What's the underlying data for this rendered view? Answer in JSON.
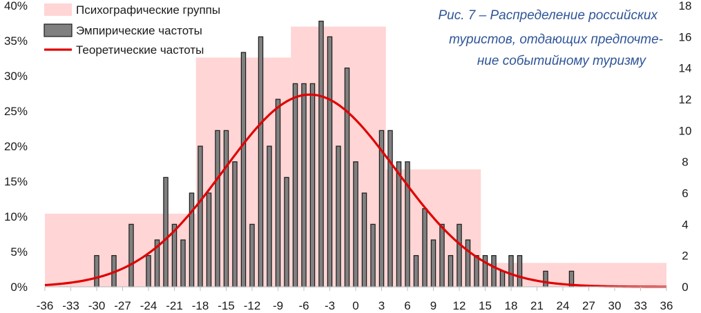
{
  "chart_data": {
    "type": "bar",
    "caption": [
      "Рис. 7 – Распределение российских",
      "туристов, отдающих предпочте-",
      "ние событийному туризму"
    ],
    "legend": {
      "placement": "top-left",
      "entries": [
        {
          "key": "groups",
          "label": "Психографические группы"
        },
        {
          "key": "empirical",
          "label": "Эмпирические частоты"
        },
        {
          "key": "theoretical",
          "label": "Теоретические частоты"
        }
      ]
    },
    "x_ticks": [
      "-36",
      "-33",
      "-30",
      "-27",
      "-24",
      "-21",
      "-18",
      "-15",
      "-12",
      "-9",
      "-6",
      "-3",
      "0",
      "3",
      "6",
      "9",
      "12",
      "15",
      "18",
      "21",
      "24",
      "27",
      "30",
      "33",
      "36"
    ],
    "y_left_ticks": [
      "0%",
      "5%",
      "10%",
      "15%",
      "20%",
      "25%",
      "30%",
      "35%",
      "40%"
    ],
    "y_right_ticks": [
      "0",
      "2",
      "4",
      "6",
      "8",
      "10",
      "12",
      "14",
      "16",
      "18"
    ],
    "xlim": [
      -36,
      36
    ],
    "ylim_left_percent": [
      0,
      40
    ],
    "ylim_right": [
      0,
      18
    ],
    "grid": "none",
    "colors": {
      "groups": "#ffd5d5",
      "empirical": "#808080",
      "bar_edge": "#1a1a1a",
      "theoretical": "#e00000",
      "caption": "#2f5597",
      "axis": "#bfbfbf",
      "text": "#1a1a1a"
    },
    "psychographic_groups": [
      {
        "x_from": -36,
        "x_to": -18.5,
        "percent": 10.4
      },
      {
        "x_from": -18.5,
        "x_to": -7.5,
        "percent": 32.6
      },
      {
        "x_from": -7.5,
        "x_to": 3.5,
        "percent": 37.0
      },
      {
        "x_from": 3.5,
        "x_to": 14.5,
        "percent": 16.7
      },
      {
        "x_from": 14.5,
        "x_to": 36,
        "percent": 3.4
      }
    ],
    "empirical": {
      "x": [
        -30,
        -28,
        -26,
        -24,
        -23,
        -22,
        -21,
        -20,
        -19,
        -18,
        -17,
        -16,
        -15,
        -14,
        -13,
        -12,
        -11,
        -10,
        -9,
        -8,
        -7,
        -6,
        -5,
        -4,
        -3,
        -2,
        -1,
        0,
        1,
        2,
        3,
        4,
        5,
        6,
        7,
        8,
        9,
        10,
        11,
        12,
        13,
        14,
        15,
        16,
        17,
        18,
        19,
        22,
        25
      ],
      "values": [
        2,
        2,
        4,
        2,
        3,
        7,
        4,
        3,
        6,
        9,
        6,
        10,
        10,
        8,
        15,
        4,
        16,
        9,
        12,
        7,
        13,
        13,
        13,
        17,
        16,
        9,
        14,
        8,
        6,
        4,
        10,
        10,
        8,
        8,
        2,
        5,
        3,
        4,
        2,
        4,
        3,
        2,
        2,
        2,
        1,
        2,
        2,
        1,
        1
      ]
    },
    "theoretical": {
      "mean": -5.3,
      "sd": 10.0,
      "peak": 12.3
    }
  }
}
